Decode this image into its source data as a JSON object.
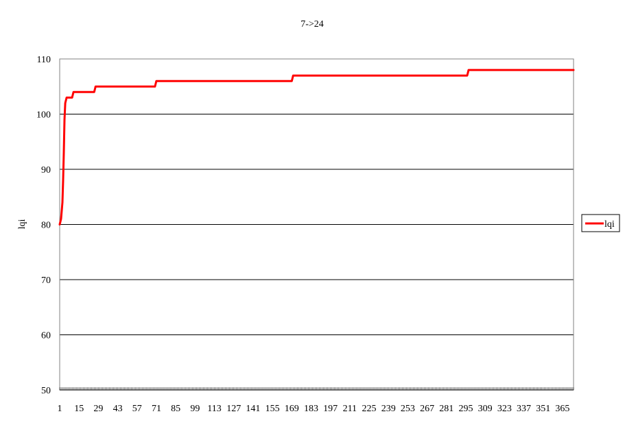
{
  "chart_data": {
    "type": "line",
    "title": "7->24",
    "xlabel": "",
    "ylabel": "lqi",
    "ylim": [
      50,
      110
    ],
    "yticks": [
      50,
      60,
      70,
      80,
      90,
      100,
      110
    ],
    "xlim": [
      1,
      373
    ],
    "xtick_labels": [
      "1",
      "15",
      "29",
      "43",
      "57",
      "71",
      "85",
      "99",
      "113",
      "127",
      "141",
      "155",
      "169",
      "183",
      "197",
      "211",
      "225",
      "239",
      "253",
      "267",
      "281",
      "295",
      "309",
      "323",
      "337",
      "351",
      "365"
    ],
    "grid": "horizontal",
    "legend": "right",
    "series": [
      {
        "name": "lqi",
        "color": "#ff0000",
        "points": [
          [
            1,
            80
          ],
          [
            2,
            81
          ],
          [
            3,
            84
          ],
          [
            3.5,
            88
          ],
          [
            4,
            93
          ],
          [
            4.5,
            99
          ],
          [
            5,
            102
          ],
          [
            6,
            103
          ],
          [
            10,
            103
          ],
          [
            11,
            104
          ],
          [
            26,
            104
          ],
          [
            27,
            105
          ],
          [
            70,
            105
          ],
          [
            71,
            106
          ],
          [
            169,
            106
          ],
          [
            170,
            107
          ],
          [
            296,
            107
          ],
          [
            297,
            108
          ],
          [
            373,
            108
          ]
        ]
      }
    ]
  }
}
